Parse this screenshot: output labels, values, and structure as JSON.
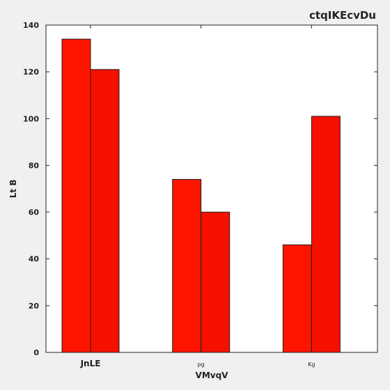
{
  "chart_data": {
    "type": "bar",
    "title": "ctqIKEcvDu",
    "xlabel": "VMvqV",
    "ylabel": "Lt B",
    "categories": [
      "JnLE",
      "pg",
      "Kg"
    ],
    "series": [
      {
        "values": [
          134,
          74,
          46
        ],
        "color": "#ff1400"
      },
      {
        "values": [
          121,
          60,
          101
        ],
        "color": "#f51000"
      }
    ],
    "ylim": [
      0,
      140
    ],
    "yticks": [
      0,
      20,
      40,
      60,
      80,
      100,
      120,
      140
    ],
    "grid": false,
    "legend": "none"
  }
}
